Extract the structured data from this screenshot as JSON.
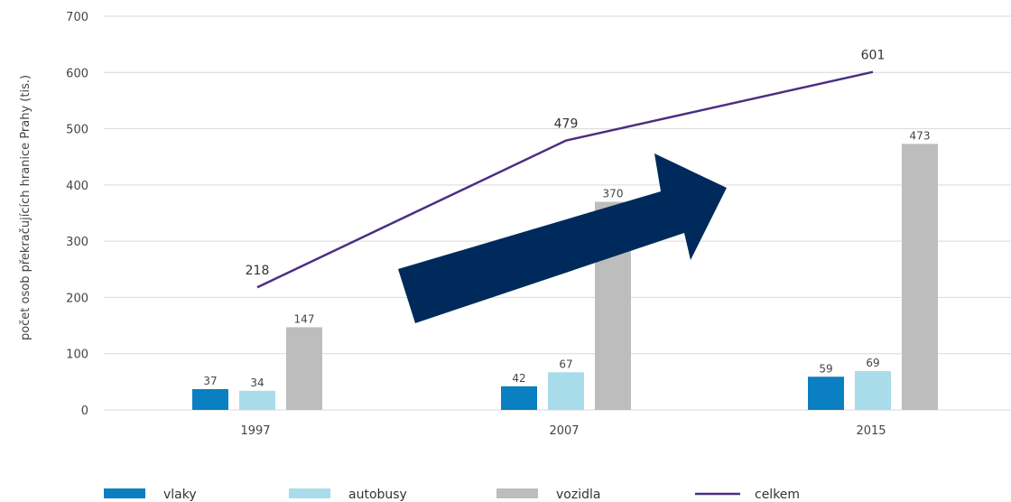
{
  "chart_data": {
    "type": "bar",
    "ylabel": "počet osob překračujících hranice Prahy (tis.)",
    "ylim": [
      0,
      700
    ],
    "yticks": [
      0,
      100,
      200,
      300,
      400,
      500,
      600,
      700
    ],
    "categories": [
      "1997",
      "2007",
      "2015"
    ],
    "grid": true,
    "legend": "bottom",
    "series": [
      {
        "name": "vlaky",
        "type": "bar",
        "color": "#0a7fc1",
        "values": [
          37,
          42,
          59
        ]
      },
      {
        "name": "autobusy",
        "type": "bar",
        "color": "#a9dcea",
        "values": [
          34,
          67,
          69
        ]
      },
      {
        "name": "vozidla",
        "type": "bar",
        "color": "#bdbdbd",
        "values": [
          147,
          370,
          473
        ]
      },
      {
        "name": "celkem",
        "type": "line",
        "color": "#4b2e83",
        "values": [
          218,
          479,
          601
        ]
      }
    ],
    "annotation": {
      "type": "arrow",
      "color": "#002a5c"
    }
  }
}
